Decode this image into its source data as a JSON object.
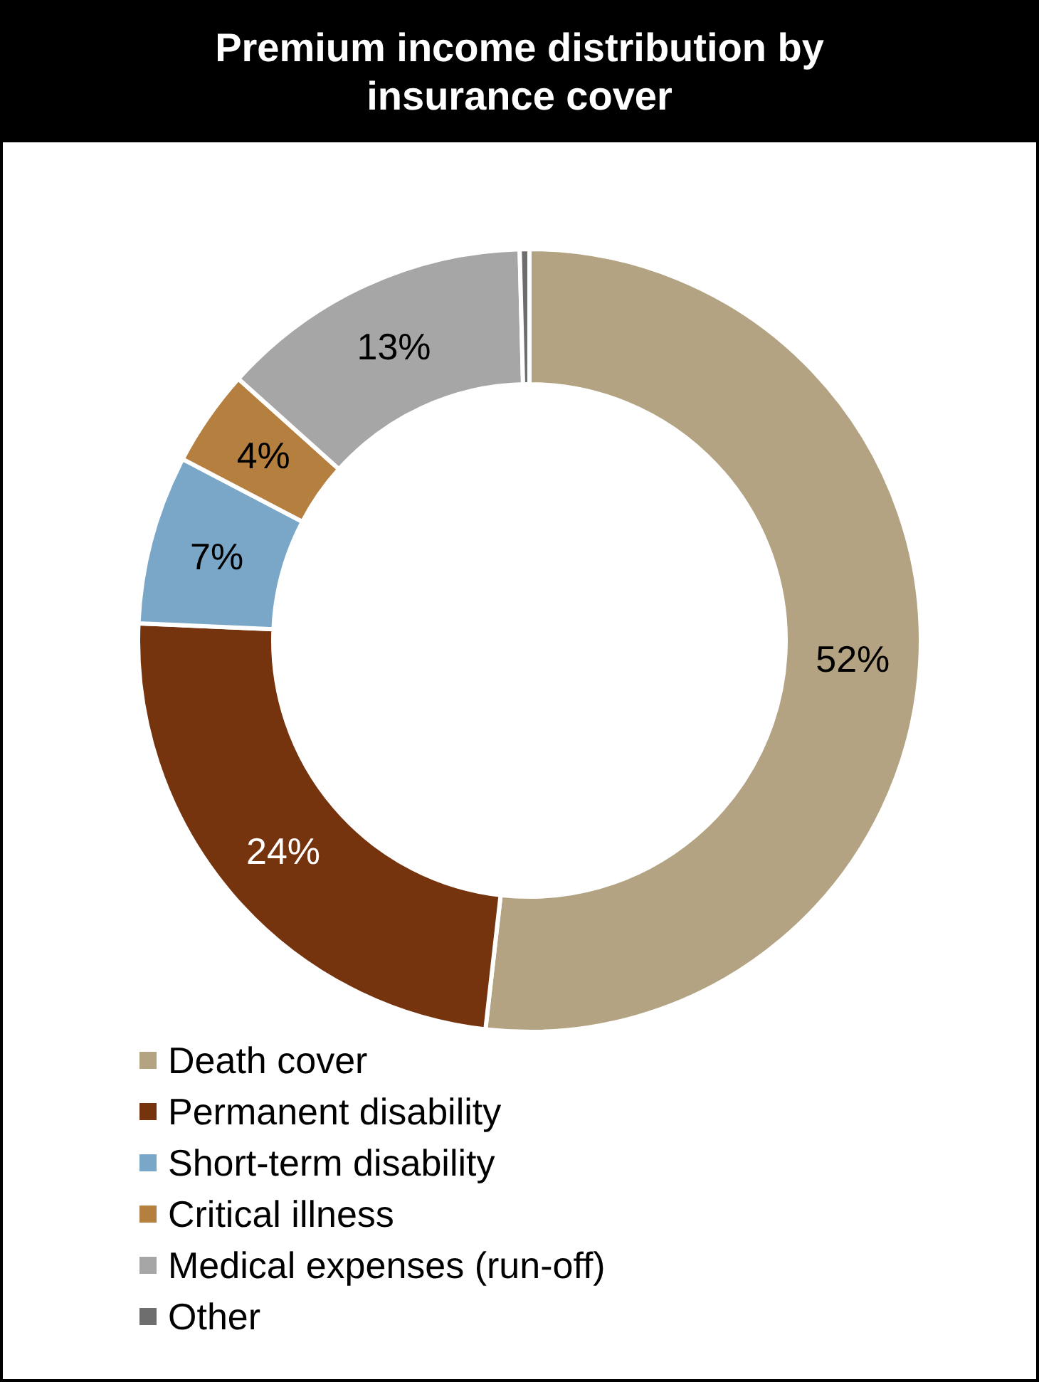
{
  "chart_data": {
    "type": "donut",
    "title": "Premium income distribution by insurance cover",
    "categories": [
      "Death cover",
      "Permanent disability",
      "Short-term disability",
      "Critical illness",
      "Medical expenses (run-off)",
      "Other"
    ],
    "values": [
      52,
      24,
      7,
      4,
      13,
      0.4
    ],
    "colors": [
      "#b3a382",
      "#75340d",
      "#7aa7c7",
      "#b5803f",
      "#a6a6a6",
      "#6e6e6e"
    ],
    "value_labels": [
      "52%",
      "24%",
      "7%",
      "4%",
      "13%",
      null
    ],
    "legend": "bottom"
  }
}
